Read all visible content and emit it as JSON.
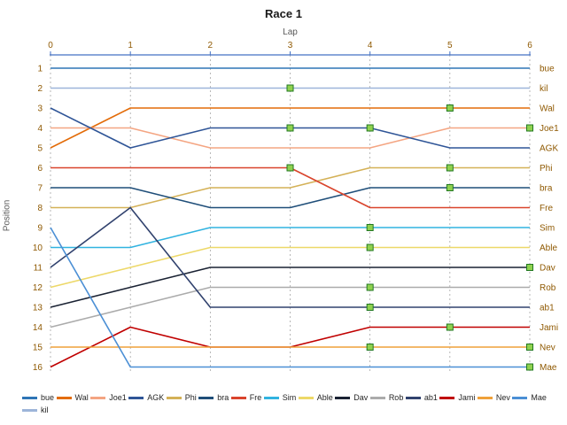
{
  "chart_data": {
    "type": "line",
    "title": "Race 1",
    "xlabel": "Lap",
    "ylabel": "Position",
    "x_ticks": [
      "0",
      "1",
      "2",
      "3",
      "4",
      "5",
      "6"
    ],
    "y_ticks": [
      "1",
      "2",
      "3",
      "4",
      "5",
      "6",
      "7",
      "8",
      "9",
      "10",
      "11",
      "12",
      "13",
      "14",
      "15",
      "16"
    ],
    "xlim": [
      0,
      6
    ],
    "ylim": [
      1,
      16
    ],
    "y_axis_inverted": true,
    "grid": "vertical-dotted",
    "legend_position": "bottom",
    "series": [
      {
        "name": "bue",
        "color": "#2E75B6",
        "positions": [
          1,
          1,
          1,
          1,
          1,
          1,
          1
        ]
      },
      {
        "name": "Wal",
        "color": "#E36C09",
        "positions": [
          5,
          3,
          3,
          3,
          3,
          3,
          3
        ]
      },
      {
        "name": "Joe1",
        "color": "#F4A582",
        "positions": [
          4,
          4,
          5,
          5,
          5,
          4,
          4
        ]
      },
      {
        "name": "AGK",
        "color": "#2F5597",
        "positions": [
          3,
          5,
          4,
          4,
          4,
          5,
          5
        ]
      },
      {
        "name": "Phi",
        "color": "#D4B157",
        "positions": [
          8,
          8,
          7,
          7,
          6,
          6,
          6
        ]
      },
      {
        "name": "bra",
        "color": "#1F4E79",
        "positions": [
          7,
          7,
          8,
          8,
          7,
          7,
          7
        ]
      },
      {
        "name": "Fre",
        "color": "#D9442C",
        "positions": [
          6,
          6,
          6,
          6,
          8,
          8,
          8
        ]
      },
      {
        "name": "Sim",
        "color": "#31B3E0",
        "positions": [
          10,
          10,
          9,
          9,
          9,
          9,
          9
        ]
      },
      {
        "name": "Able",
        "color": "#EDD868",
        "positions": [
          12,
          11,
          10,
          10,
          10,
          10,
          10
        ]
      },
      {
        "name": "Dav",
        "color": "#1A2233",
        "positions": [
          13,
          12,
          11,
          11,
          11,
          11,
          11
        ]
      },
      {
        "name": "Rob",
        "color": "#ABABAB",
        "positions": [
          14,
          13,
          12,
          12,
          12,
          12,
          12
        ]
      },
      {
        "name": "ab1",
        "color": "#31426E",
        "positions": [
          11,
          8,
          13,
          13,
          13,
          13,
          13
        ]
      },
      {
        "name": "Jami",
        "color": "#C00000",
        "positions": [
          16,
          14,
          15,
          15,
          14,
          14,
          14
        ]
      },
      {
        "name": "Nev",
        "color": "#EFA13A",
        "positions": [
          15,
          15,
          15,
          15,
          15,
          15,
          15
        ]
      },
      {
        "name": "Mae",
        "color": "#4B8FD5",
        "positions": [
          9,
          16,
          16,
          16,
          16,
          16,
          16
        ]
      },
      {
        "name": "kil",
        "color": "#9DB5D9",
        "positions": [
          2,
          2,
          2,
          2,
          2,
          2,
          2
        ]
      }
    ],
    "legend_rows": [
      [
        "bue",
        "Wal",
        "Joe1",
        "AGK",
        "Phi",
        "bra",
        "Fre",
        "Sim",
        "Able",
        "Dav",
        "Rob",
        "ab1",
        "Jami",
        "Nev",
        "Mae"
      ],
      [
        "kil"
      ]
    ],
    "markers": {
      "shape": "square",
      "fill": "#8FD14F",
      "stroke": "#217821",
      "points": [
        [
          3,
          2
        ],
        [
          5,
          3
        ],
        [
          3,
          4
        ],
        [
          4,
          4
        ],
        [
          6,
          4
        ],
        [
          3,
          6
        ],
        [
          5,
          6
        ],
        [
          5,
          7
        ],
        [
          4,
          9
        ],
        [
          4,
          10
        ],
        [
          6,
          11
        ],
        [
          4,
          12
        ],
        [
          4,
          13
        ],
        [
          5,
          14
        ],
        [
          4,
          15
        ],
        [
          6,
          15
        ],
        [
          6,
          16
        ]
      ]
    }
  },
  "colors": {
    "background": "#FFFFFF",
    "axis_line": "#4472C4",
    "gridline": "#999999",
    "tick_label": "#8F5902",
    "series_end_label": "#8F5902",
    "title_text": "#1A1A1A",
    "axis_title_text": "#595959",
    "legend_text": "#262626"
  }
}
